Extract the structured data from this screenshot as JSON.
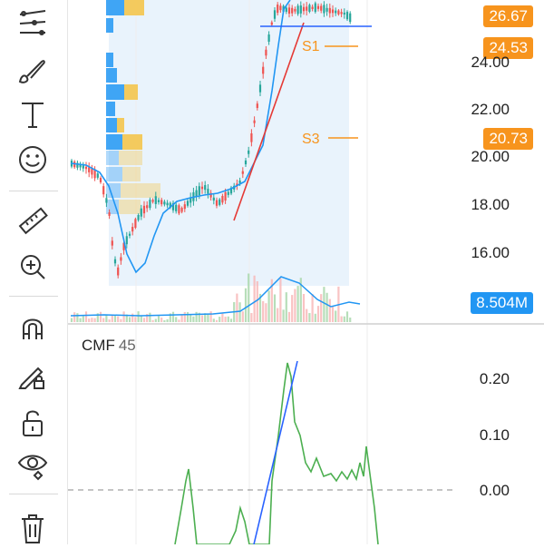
{
  "toolbar": {
    "tools": [
      {
        "name": "trend-line-tools-icon"
      },
      {
        "name": "brush-icon"
      },
      {
        "name": "text-icon"
      },
      {
        "name": "emoji-icon"
      },
      {
        "name": "ruler-icon"
      },
      {
        "name": "zoom-in-icon"
      },
      {
        "name": "magnet-icon"
      },
      {
        "name": "lock-drawing-icon"
      },
      {
        "name": "unlock-icon"
      },
      {
        "name": "eye-icon"
      },
      {
        "name": "trash-icon"
      }
    ]
  },
  "price_axis": {
    "labels": [
      "24.00",
      "22.00",
      "20.00",
      "18.00",
      "16.00"
    ],
    "tags": [
      {
        "text": "26.67",
        "color": "#f7941d"
      },
      {
        "text": "24.53",
        "color": "#f7941d"
      },
      {
        "text": "20.73",
        "color": "#f7941d"
      },
      {
        "text": "8.504M",
        "color": "#2196f3"
      }
    ]
  },
  "annotations": {
    "s1": "S1",
    "s3": "S3"
  },
  "indicator": {
    "name": "CMF",
    "period": "45",
    "axis_labels": [
      "0.20",
      "0.10",
      "0.00"
    ]
  },
  "colors": {
    "up": "#26a69a",
    "down": "#ef5350",
    "ma": "#2196f3",
    "cmf": "#4caf50",
    "trend": "#e53935",
    "volume_profile_up": "#2196f3",
    "volume_profile_down": "#f5c242",
    "accent": "#f7941d"
  }
}
